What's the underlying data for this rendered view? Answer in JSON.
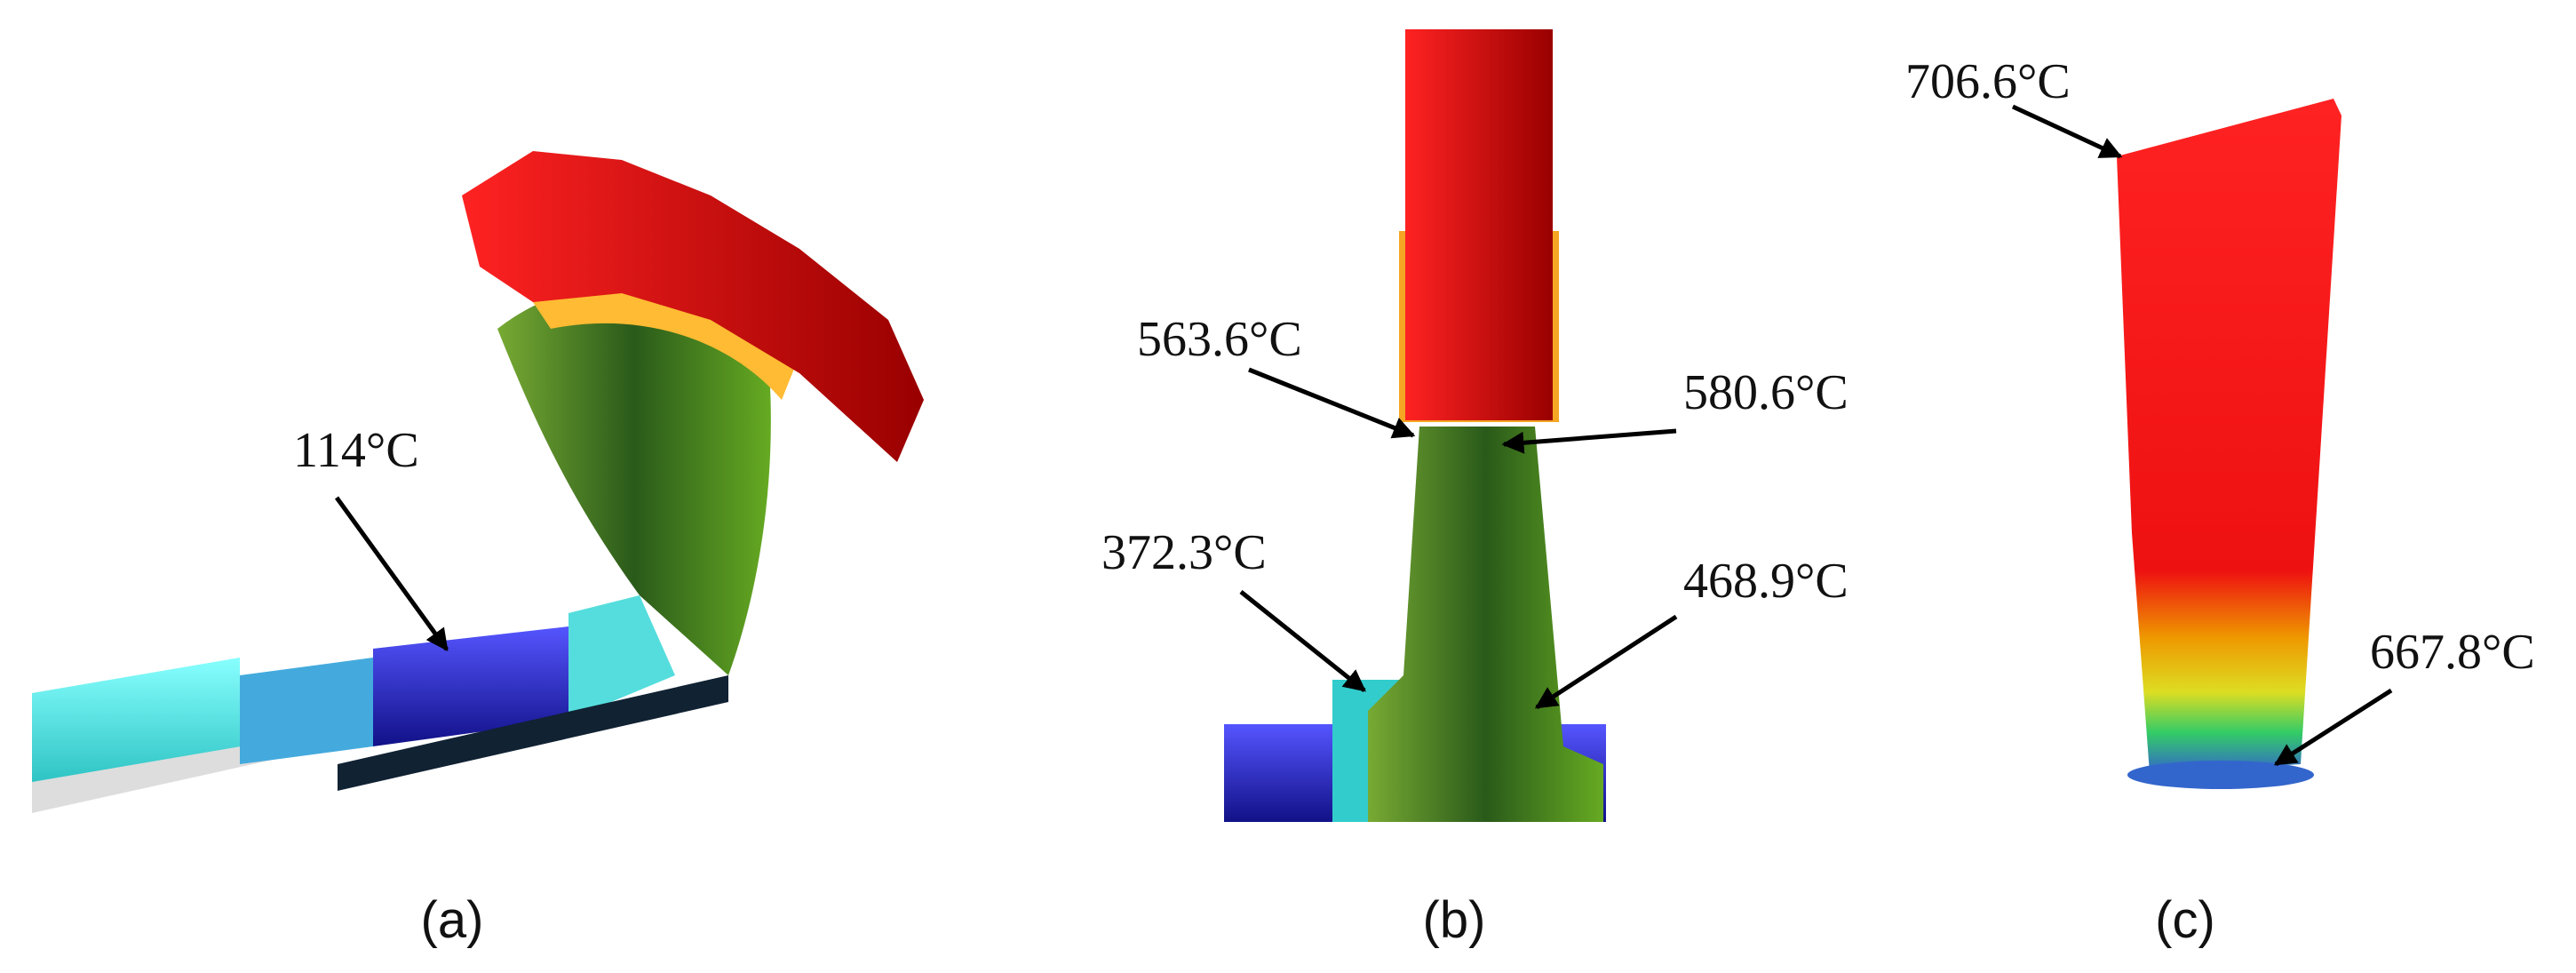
{
  "panels": [
    {
      "label": "(a)",
      "annotations": [
        "114°C"
      ]
    },
    {
      "label": "(b)",
      "annotations": [
        "563.6°C",
        "580.6°C",
        "372.3°C",
        "468.9°C"
      ]
    },
    {
      "label": "(c)",
      "annotations": [
        "706.6°C",
        "667.8°C"
      ]
    }
  ]
}
